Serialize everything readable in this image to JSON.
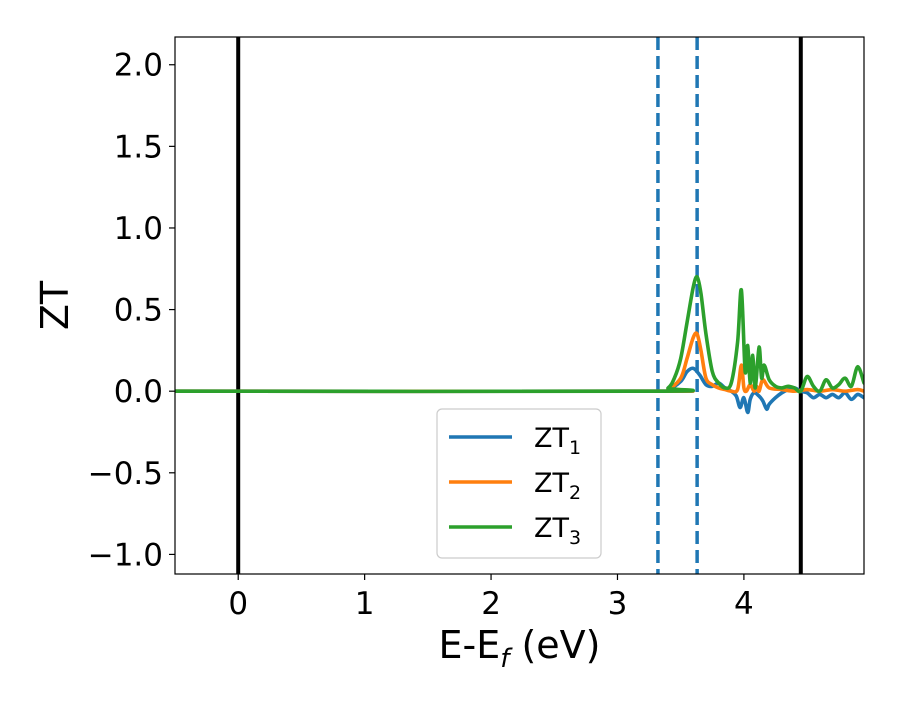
{
  "chart_data": {
    "type": "line",
    "xlabel": {
      "main": "E-E",
      "sub": "f",
      "suffix": " (eV)"
    },
    "ylabel": "ZT",
    "xlim": [
      -0.5,
      4.95
    ],
    "ylim": [
      -1.12,
      2.17
    ],
    "xticks": [
      0,
      1,
      2,
      3,
      4
    ],
    "xtick_labels": [
      "0",
      "1",
      "2",
      "3",
      "4"
    ],
    "yticks": [
      2.0,
      1.5,
      1.0,
      0.5,
      0.0,
      -0.5,
      -1.0
    ],
    "ytick_labels": [
      "2.0",
      "1.5",
      "1.0",
      "0.5",
      "0.0",
      "−0.5",
      "−1.0"
    ],
    "grid": false,
    "legend_position": "lower-center",
    "vertical_lines": [
      {
        "x": 0.0,
        "style": "solid",
        "color": "#000000"
      },
      {
        "x": 4.45,
        "style": "solid",
        "color": "#000000"
      },
      {
        "x": 3.32,
        "style": "dashed",
        "color": "#1f77b4"
      },
      {
        "x": 3.63,
        "style": "dashed",
        "color": "#1f77b4"
      }
    ],
    "series": [
      {
        "name": "ZT",
        "sub": "1",
        "color": "#1f77b4",
        "x": [
          -0.5,
          3.3,
          3.4,
          3.5,
          3.55,
          3.6,
          3.65,
          3.7,
          3.75,
          3.8,
          3.85,
          3.9,
          3.94,
          3.97,
          4.0,
          4.03,
          4.05,
          4.08,
          4.12,
          4.15,
          4.18,
          4.2,
          4.25,
          4.3,
          4.35,
          4.4,
          4.45,
          4.5,
          4.55,
          4.6,
          4.65,
          4.7,
          4.75,
          4.8,
          4.85,
          4.9,
          4.95
        ],
        "y": [
          0.0,
          0.0,
          0.01,
          0.06,
          0.12,
          0.14,
          0.1,
          0.04,
          0.03,
          0.05,
          0.02,
          0.0,
          -0.03,
          -0.1,
          -0.04,
          -0.13,
          -0.05,
          -0.01,
          -0.03,
          -0.06,
          -0.11,
          -0.08,
          -0.04,
          -0.01,
          0.01,
          0.02,
          0.0,
          -0.01,
          -0.04,
          -0.02,
          -0.04,
          -0.02,
          -0.04,
          -0.01,
          -0.05,
          -0.02,
          -0.04
        ]
      },
      {
        "name": "ZT",
        "sub": "2",
        "color": "#ff7f0e",
        "x": [
          -0.5,
          3.3,
          3.4,
          3.5,
          3.55,
          3.6,
          3.63,
          3.66,
          3.7,
          3.75,
          3.8,
          3.85,
          3.9,
          3.95,
          3.98,
          4.0,
          4.02,
          4.05,
          4.08,
          4.1,
          4.12,
          4.15,
          4.2,
          4.3,
          4.4,
          4.5,
          4.6,
          4.7,
          4.8,
          4.9,
          4.95
        ],
        "y": [
          0.0,
          0.0,
          0.01,
          0.08,
          0.2,
          0.33,
          0.35,
          0.25,
          0.08,
          0.04,
          0.02,
          0.01,
          0.0,
          0.01,
          0.16,
          0.02,
          0.0,
          0.04,
          0.0,
          0.03,
          0.0,
          0.07,
          0.02,
          0.01,
          0.0,
          0.01,
          0.0,
          0.01,
          0.0,
          0.01,
          0.0
        ]
      },
      {
        "name": "ZT",
        "sub": "3",
        "color": "#2ca02c",
        "x": [
          -0.5,
          3.3,
          3.4,
          3.45,
          3.5,
          3.55,
          3.6,
          3.63,
          3.66,
          3.7,
          3.75,
          3.8,
          3.85,
          3.9,
          3.95,
          3.98,
          4.01,
          4.03,
          4.05,
          4.07,
          4.09,
          4.12,
          4.14,
          4.16,
          4.2,
          4.25,
          4.3,
          4.35,
          4.4,
          4.45,
          4.5,
          4.55,
          4.6,
          4.65,
          4.7,
          4.75,
          4.8,
          4.85,
          4.9,
          4.95
        ],
        "y": [
          0.0,
          0.0,
          0.02,
          0.08,
          0.2,
          0.42,
          0.64,
          0.7,
          0.6,
          0.35,
          0.12,
          0.05,
          0.02,
          0.05,
          0.3,
          0.62,
          0.12,
          0.28,
          0.05,
          0.22,
          0.02,
          0.27,
          0.08,
          0.16,
          0.07,
          0.03,
          0.02,
          0.03,
          0.02,
          0.0,
          0.09,
          0.03,
          0.0,
          0.07,
          0.02,
          0.04,
          0.08,
          0.03,
          0.15,
          0.05
        ]
      }
    ]
  }
}
